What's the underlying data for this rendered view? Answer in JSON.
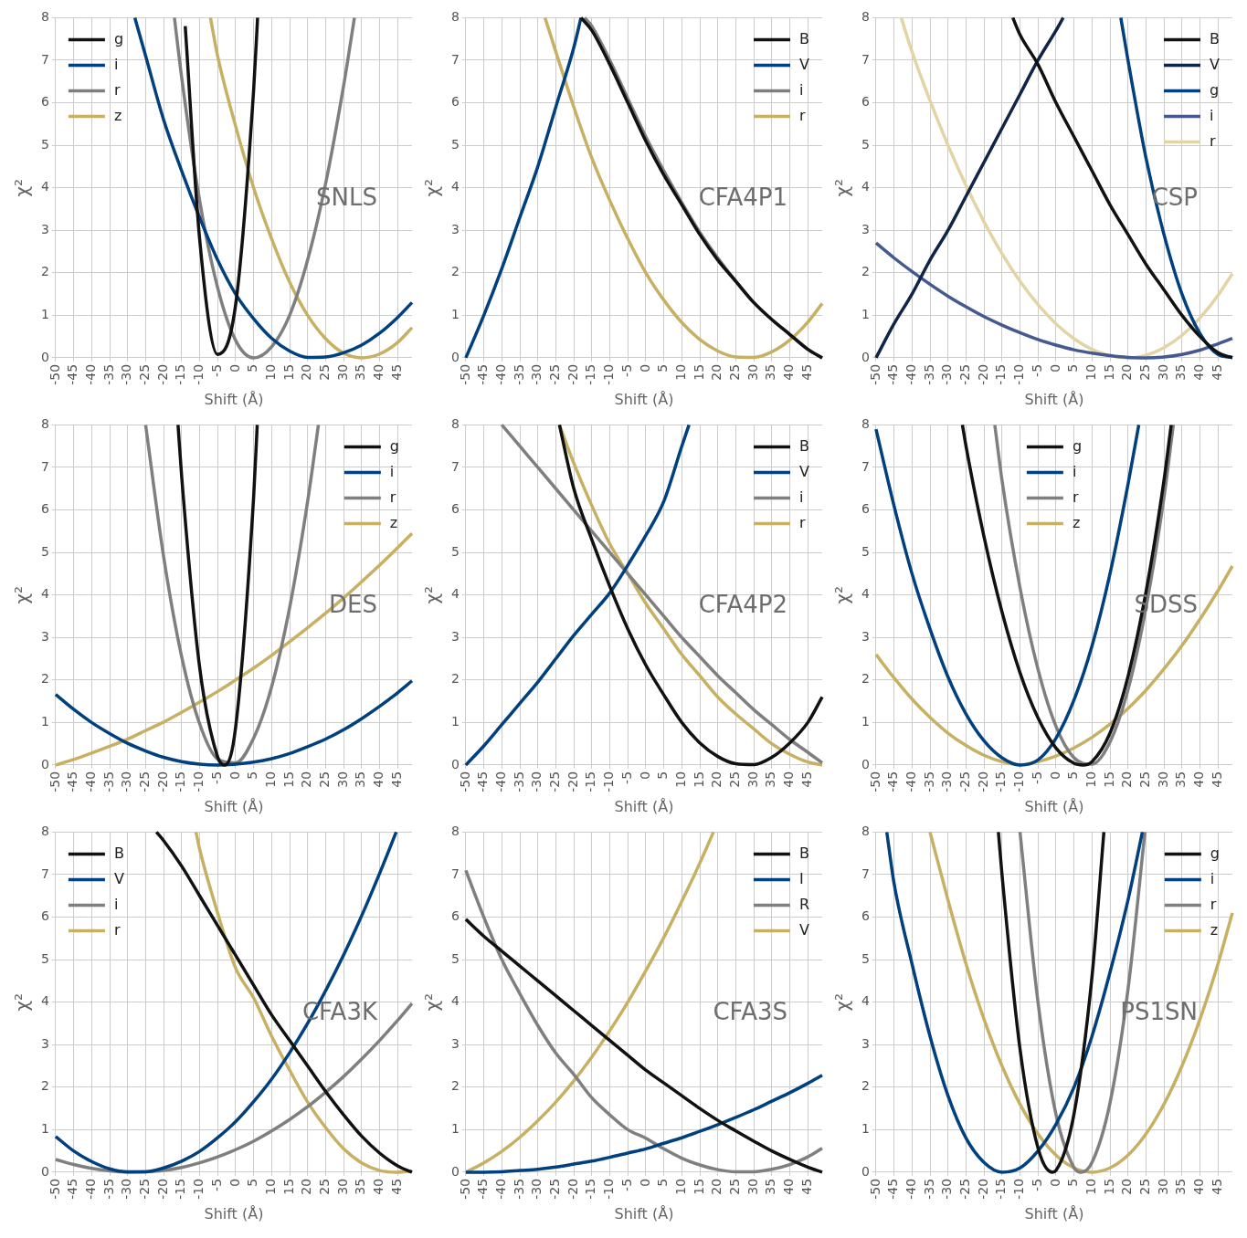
{
  "chart_data": [
    {
      "type": "line",
      "xlabel": "Shift (Å)",
      "ylabel": "χ²",
      "xlim": [
        -50,
        49
      ],
      "xticks": [
        -50,
        -45,
        -40,
        -35,
        -30,
        -25,
        -20,
        -15,
        -10,
        -5,
        0,
        5,
        10,
        15,
        20,
        25,
        30,
        35,
        40,
        45
      ],
      "ylim": [
        0,
        8
      ],
      "yticks": [
        0,
        1,
        2,
        3,
        4,
        5,
        6,
        7,
        8
      ],
      "grid": true,
      "legend": "top left",
      "annotations": [
        "SNLS"
      ],
      "series": [
        {
          "name": "g",
          "color": "#111111",
          "x": [
            -14,
            -10,
            -5,
            0,
            5,
            6.1
          ],
          "values": [
            7.8,
            2.8,
            0.08,
            1.25,
            6.3,
            8
          ]
        },
        {
          "name": "i",
          "color": "#00407f",
          "x": [
            -28,
            -25,
            -20,
            -15,
            -10,
            -5,
            0,
            5,
            10,
            15,
            20,
            25,
            30,
            35,
            40,
            45,
            49
          ],
          "values": [
            8,
            7.1,
            5.6,
            4.4,
            3.3,
            2.3,
            1.5,
            0.92,
            0.46,
            0.16,
            0.01,
            0.02,
            0.12,
            0.3,
            0.58,
            0.95,
            1.3
          ]
        },
        {
          "name": "r",
          "color": "#7f7f7f",
          "x": [
            -17,
            -15,
            -10,
            -5,
            0,
            5,
            10,
            15,
            20,
            25,
            30,
            33
          ],
          "values": [
            8,
            6.6,
            3.7,
            1.65,
            0.41,
            0,
            0.26,
            1.0,
            2.3,
            4.1,
            6.4,
            8
          ]
        },
        {
          "name": "z",
          "color": "#c8b063",
          "x": [
            -7,
            -5,
            0,
            5,
            10,
            15,
            20,
            25,
            30,
            35,
            40,
            45,
            49
          ],
          "values": [
            8,
            7.1,
            5.45,
            4.0,
            2.8,
            1.78,
            1.0,
            0.45,
            0.11,
            0,
            0.09,
            0.36,
            0.71
          ]
        }
      ]
    },
    {
      "type": "line",
      "xlabel": "Shift (Å)",
      "ylabel": "χ²",
      "xlim": [
        -50,
        49
      ],
      "xticks": [
        -50,
        -45,
        -40,
        -35,
        -30,
        -25,
        -20,
        -15,
        -10,
        -5,
        0,
        5,
        10,
        15,
        20,
        25,
        30,
        35,
        40,
        45
      ],
      "ylim": [
        0,
        8
      ],
      "yticks": [
        0,
        1,
        2,
        3,
        4,
        5,
        6,
        7,
        8
      ],
      "grid": true,
      "legend": "top right",
      "annotations": [
        "CFA4P1"
      ],
      "series": [
        {
          "name": "B",
          "color": "#111111",
          "x": [
            -18,
            -15,
            -10,
            -5,
            0,
            5,
            10,
            15,
            20,
            25,
            30,
            35,
            40,
            45,
            49
          ],
          "values": [
            8,
            7.7,
            6.9,
            6.0,
            5.1,
            4.3,
            3.6,
            2.9,
            2.3,
            1.8,
            1.3,
            0.9,
            0.55,
            0.2,
            0
          ]
        },
        {
          "name": "V",
          "color": "#00407f",
          "x": [
            -50,
            -45,
            -40,
            -35,
            -30,
            -25,
            -20,
            -18
          ],
          "values": [
            0,
            1.0,
            2.1,
            3.3,
            4.5,
            5.9,
            7.3,
            8
          ]
        },
        {
          "name": "i",
          "color": "#7f7f7f",
          "x": [
            -17,
            -15,
            -10,
            -5,
            0,
            5,
            10,
            15,
            20,
            25,
            30,
            35,
            40,
            45,
            49
          ],
          "values": [
            8,
            7.8,
            7.0,
            6.1,
            5.2,
            4.4,
            3.65,
            2.95,
            2.35,
            1.8,
            1.3,
            0.9,
            0.55,
            0.2,
            0
          ]
        },
        {
          "name": "r",
          "color": "#c8b063",
          "x": [
            -28,
            -25,
            -20,
            -15,
            -10,
            -5,
            0,
            5,
            10,
            15,
            20,
            25,
            30,
            35,
            40,
            45,
            49
          ],
          "values": [
            8,
            7.2,
            5.9,
            4.7,
            3.7,
            2.8,
            2.0,
            1.36,
            0.83,
            0.43,
            0.16,
            0.02,
            0.01,
            0.14,
            0.42,
            0.84,
            1.28
          ]
        }
      ]
    },
    {
      "type": "line",
      "xlabel": "Shift (Å)",
      "ylabel": "χ²",
      "xlim": [
        -50,
        49
      ],
      "xticks": [
        -50,
        -45,
        -40,
        -35,
        -30,
        -25,
        -20,
        -15,
        -10,
        -5,
        0,
        5,
        10,
        15,
        20,
        25,
        30,
        35,
        40,
        45
      ],
      "ylim": [
        0,
        8
      ],
      "yticks": [
        0,
        1,
        2,
        3,
        4,
        5,
        6,
        7,
        8
      ],
      "grid": true,
      "legend": "top right",
      "annotations": [
        "CSP"
      ],
      "series": [
        {
          "name": "B",
          "color": "#111111",
          "x": [
            -12,
            -10,
            -5,
            0,
            5,
            10,
            15,
            20,
            25,
            30,
            35,
            40,
            45,
            49
          ],
          "values": [
            8,
            7.6,
            6.9,
            6.0,
            5.2,
            4.4,
            3.6,
            2.9,
            2.2,
            1.6,
            1.0,
            0.5,
            0.12,
            0
          ]
        },
        {
          "name": "V",
          "color": "#0f2446",
          "x": [
            -50,
            -45,
            -40,
            -35,
            -30,
            -25,
            -20,
            -15,
            -10,
            -5,
            0,
            2
          ],
          "values": [
            0,
            0.8,
            1.5,
            2.3,
            3.0,
            3.8,
            4.6,
            5.4,
            6.2,
            7.0,
            7.7,
            8
          ]
        },
        {
          "name": "g",
          "color": "#00407f",
          "x": [
            18,
            20,
            25,
            30,
            35,
            40,
            45,
            49
          ],
          "values": [
            8,
            7.0,
            4.7,
            2.9,
            1.5,
            0.57,
            0.08,
            0.01
          ]
        },
        {
          "name": "i",
          "color": "#44598f",
          "x": [
            -50,
            -45,
            -40,
            -35,
            -30,
            -25,
            -20,
            -15,
            -10,
            -5,
            0,
            5,
            10,
            15,
            20,
            25,
            30,
            35,
            40,
            45,
            49
          ],
          "values": [
            2.7,
            2.35,
            2.03,
            1.73,
            1.45,
            1.2,
            0.97,
            0.77,
            0.59,
            0.43,
            0.3,
            0.19,
            0.11,
            0.05,
            0.01,
            0,
            0.02,
            0.08,
            0.18,
            0.33,
            0.46
          ]
        },
        {
          "name": "r",
          "color": "#e3d4a4",
          "x": [
            -43,
            -40,
            -35,
            -30,
            -25,
            -20,
            -15,
            -10,
            -5,
            0,
            5,
            10,
            15,
            20,
            25,
            30,
            35,
            40,
            45,
            49
          ],
          "values": [
            8,
            7.2,
            6.05,
            5.0,
            4.05,
            3.2,
            2.45,
            1.8,
            1.25,
            0.8,
            0.45,
            0.2,
            0.05,
            0,
            0.06,
            0.24,
            0.53,
            0.94,
            1.47,
            1.98
          ]
        }
      ]
    },
    {
      "type": "line",
      "xlabel": "Shift (Å)",
      "ylabel": "χ²",
      "xlim": [
        -50,
        49
      ],
      "xticks": [
        -50,
        -45,
        -40,
        -35,
        -30,
        -25,
        -20,
        -15,
        -10,
        -5,
        0,
        5,
        10,
        15,
        20,
        25,
        30,
        35,
        40,
        45
      ],
      "ylim": [
        0,
        8
      ],
      "yticks": [
        0,
        1,
        2,
        3,
        4,
        5,
        6,
        7,
        8
      ],
      "grid": true,
      "legend": "top right",
      "annotations": [
        "DES"
      ],
      "series": [
        {
          "name": "g",
          "color": "#111111",
          "x": [
            -16,
            -15,
            -10,
            -5,
            -3,
            0,
            5,
            6
          ],
          "values": [
            8,
            6.8,
            2.3,
            0.19,
            0,
            0.89,
            6.3,
            8
          ]
        },
        {
          "name": "i",
          "color": "#00407f",
          "x": [
            -50,
            -45,
            -40,
            -35,
            -30,
            -25,
            -20,
            -15,
            -10,
            -5,
            0,
            5,
            10,
            15,
            20,
            25,
            30,
            35,
            40,
            45,
            49
          ],
          "values": [
            1.66,
            1.31,
            1.0,
            0.74,
            0.51,
            0.33,
            0.18,
            0.08,
            0.02,
            0,
            0.02,
            0.07,
            0.15,
            0.27,
            0.43,
            0.61,
            0.83,
            1.09,
            1.38,
            1.7,
            1.98
          ]
        },
        {
          "name": "r",
          "color": "#7f7f7f",
          "x": [
            -25,
            -20,
            -15,
            -10,
            -5,
            0,
            5,
            10,
            15,
            20,
            23
          ],
          "values": [
            8,
            4.9,
            2.55,
            0.97,
            0.14,
            0.05,
            0.63,
            1.84,
            3.7,
            6.2,
            8
          ]
        },
        {
          "name": "z",
          "color": "#c8b063",
          "x": [
            -50,
            -45,
            -40,
            -35,
            -30,
            -25,
            -20,
            -15,
            -10,
            -5,
            0,
            5,
            10,
            15,
            20,
            25,
            30,
            35,
            40,
            45,
            49
          ],
          "values": [
            0,
            0.13,
            0.28,
            0.44,
            0.61,
            0.81,
            1.01,
            1.24,
            1.48,
            1.73,
            2.0,
            2.28,
            2.58,
            2.9,
            3.23,
            3.57,
            3.93,
            4.31,
            4.7,
            5.11,
            5.45
          ]
        }
      ]
    },
    {
      "type": "line",
      "xlabel": "Shift (Å)",
      "ylabel": "χ²",
      "xlim": [
        -50,
        49
      ],
      "xticks": [
        -50,
        -45,
        -40,
        -35,
        -30,
        -25,
        -20,
        -15,
        -10,
        -5,
        0,
        5,
        10,
        15,
        20,
        25,
        30,
        35,
        40,
        45
      ],
      "ylim": [
        0,
        8
      ],
      "yticks": [
        0,
        1,
        2,
        3,
        4,
        5,
        6,
        7,
        8
      ],
      "grid": true,
      "legend": "top right",
      "annotations": [
        "CFA4P2"
      ],
      "series": [
        {
          "name": "B",
          "color": "#111111",
          "x": [
            -24,
            -20,
            -15,
            -10,
            -5,
            0,
            5,
            10,
            15,
            20,
            25,
            30,
            35,
            40,
            45,
            49
          ],
          "values": [
            8,
            6.5,
            5.3,
            4.2,
            3.2,
            2.35,
            1.65,
            1.0,
            0.52,
            0.2,
            0.03,
            0.01,
            0.18,
            0.52,
            1.0,
            1.6
          ]
        },
        {
          "name": "V",
          "color": "#00407f",
          "x": [
            -50,
            -45,
            -40,
            -35,
            -30,
            -25,
            -20,
            -15,
            -10,
            -5,
            0,
            5,
            10,
            12
          ],
          "values": [
            0,
            0.45,
            0.95,
            1.45,
            1.95,
            2.5,
            3.05,
            3.55,
            4.05,
            4.7,
            5.4,
            6.2,
            7.5,
            8
          ]
        },
        {
          "name": "i",
          "color": "#7f7f7f",
          "x": [
            -40,
            -35,
            -30,
            -25,
            -20,
            -15,
            -10,
            -5,
            0,
            5,
            10,
            15,
            20,
            25,
            30,
            35,
            40,
            45,
            49
          ],
          "values": [
            8,
            7.5,
            7.0,
            6.5,
            6.0,
            5.5,
            5.0,
            4.5,
            4.0,
            3.5,
            3.0,
            2.55,
            2.1,
            1.7,
            1.3,
            0.95,
            0.6,
            0.3,
            0.05
          ]
        },
        {
          "name": "r",
          "color": "#c8b063",
          "x": [
            -24,
            -20,
            -15,
            -10,
            -5,
            0,
            5,
            10,
            15,
            20,
            25,
            30,
            35,
            40,
            45,
            49
          ],
          "values": [
            8,
            7.1,
            6.1,
            5.2,
            4.5,
            3.8,
            3.2,
            2.6,
            2.1,
            1.6,
            1.2,
            0.85,
            0.5,
            0.25,
            0.07,
            0
          ]
        }
      ]
    },
    {
      "type": "line",
      "xlabel": "Shift (Å)",
      "ylabel": "χ²",
      "xlim": [
        -50,
        49
      ],
      "xticks": [
        -50,
        -45,
        -40,
        -35,
        -30,
        -25,
        -20,
        -15,
        -10,
        -5,
        0,
        5,
        10,
        15,
        20,
        25,
        30,
        35,
        40,
        45
      ],
      "ylim": [
        0,
        8
      ],
      "yticks": [
        0,
        1,
        2,
        3,
        4,
        5,
        6,
        7,
        8
      ],
      "grid": true,
      "legend": "top",
      "annotations": [
        "SDSS"
      ],
      "series": [
        {
          "name": "g",
          "color": "#111111",
          "x": [
            -26,
            -25,
            -20,
            -15,
            -10,
            -5,
            0,
            5,
            7.5,
            10,
            15,
            20,
            25,
            30,
            32
          ],
          "values": [
            8,
            7.5,
            5.37,
            3.6,
            2.17,
            1.11,
            0.4,
            0.04,
            0,
            0.08,
            0.75,
            2.08,
            4.07,
            6.7,
            8
          ]
        },
        {
          "name": "i",
          "color": "#00407f",
          "x": [
            -50,
            -45,
            -40,
            -35,
            -30,
            -25,
            -20,
            -15,
            -10,
            -5,
            0,
            5,
            10,
            15,
            20,
            23
          ],
          "values": [
            7.9,
            6.1,
            4.5,
            3.2,
            2.07,
            1.2,
            0.57,
            0.17,
            0,
            0.12,
            0.63,
            1.53,
            2.8,
            4.5,
            6.6,
            8
          ]
        },
        {
          "name": "r",
          "color": "#7f7f7f",
          "x": [
            -17,
            -15,
            -10,
            -5,
            0,
            5,
            10,
            15,
            20,
            25,
            30,
            32.6
          ],
          "values": [
            8,
            6.7,
            4.17,
            2.25,
            0.91,
            0.17,
            0.02,
            0.54,
            1.77,
            3.7,
            6.3,
            8
          ]
        },
        {
          "name": "z",
          "color": "#c8b063",
          "x": [
            -50,
            -45,
            -40,
            -35,
            -30,
            -25,
            -20,
            -15,
            -10,
            -5,
            0,
            5,
            10,
            15,
            20,
            25,
            30,
            35,
            40,
            45,
            49
          ],
          "values": [
            2.6,
            2.05,
            1.55,
            1.12,
            0.75,
            0.46,
            0.23,
            0.08,
            0.01,
            0.08,
            0.21,
            0.4,
            0.65,
            0.96,
            1.33,
            1.76,
            2.26,
            2.81,
            3.43,
            4.1,
            4.68
          ]
        }
      ]
    },
    {
      "type": "line",
      "xlabel": "Shift (Å)",
      "ylabel": "χ²",
      "xlim": [
        -50,
        49
      ],
      "xticks": [
        -50,
        -45,
        -40,
        -35,
        -30,
        -25,
        -20,
        -15,
        -10,
        -5,
        0,
        5,
        10,
        15,
        20,
        25,
        30,
        35,
        40,
        45
      ],
      "ylim": [
        0,
        8
      ],
      "yticks": [
        0,
        1,
        2,
        3,
        4,
        5,
        6,
        7,
        8
      ],
      "grid": true,
      "legend": "top left",
      "annotations": [
        "CFA3K"
      ],
      "series": [
        {
          "name": "B",
          "color": "#111111",
          "x": [
            -22,
            -20,
            -15,
            -10,
            -5,
            0,
            5,
            10,
            15,
            20,
            25,
            30,
            35,
            40,
            45,
            49
          ],
          "values": [
            8,
            7.8,
            7.2,
            6.5,
            5.8,
            5.1,
            4.4,
            3.7,
            3.1,
            2.5,
            1.9,
            1.35,
            0.85,
            0.45,
            0.15,
            0
          ]
        },
        {
          "name": "V",
          "color": "#00407f",
          "x": [
            -50,
            -45,
            -40,
            -35,
            -30,
            -25,
            -20,
            -15,
            -10,
            -5,
            0,
            5,
            10,
            15,
            20,
            25,
            30,
            35,
            40,
            44.6
          ],
          "values": [
            0.84,
            0.5,
            0.25,
            0.08,
            0.01,
            0.01,
            0.1,
            0.26,
            0.49,
            0.81,
            1.19,
            1.66,
            2.19,
            2.81,
            3.5,
            4.27,
            5.11,
            6.03,
            7.03,
            8
          ]
        },
        {
          "name": "i",
          "color": "#7f7f7f",
          "x": [
            -50,
            -45,
            -40,
            -35,
            -30,
            -25,
            -20,
            -15,
            -10,
            -5,
            0,
            5,
            10,
            15,
            20,
            25,
            30,
            35,
            40,
            45,
            49
          ],
          "values": [
            0.3,
            0.18,
            0.09,
            0.03,
            0,
            0.01,
            0.04,
            0.11,
            0.22,
            0.36,
            0.53,
            0.73,
            0.97,
            1.24,
            1.54,
            1.88,
            2.25,
            2.66,
            3.1,
            3.57,
            3.97
          ]
        },
        {
          "name": "r",
          "color": "#c8b063",
          "x": [
            -11,
            -10,
            -5,
            0,
            5,
            10,
            15,
            20,
            25,
            30,
            35,
            40,
            45,
            49
          ],
          "values": [
            8,
            7.6,
            6.1,
            4.8,
            4.1,
            3.2,
            2.4,
            1.65,
            1.05,
            0.55,
            0.22,
            0.04,
            0,
            0.03
          ]
        }
      ]
    },
    {
      "type": "line",
      "xlabel": "Shift (Å)",
      "ylabel": "χ²",
      "xlim": [
        -50,
        49
      ],
      "xticks": [
        -50,
        -45,
        -40,
        -35,
        -30,
        -25,
        -20,
        -15,
        -10,
        -5,
        0,
        5,
        10,
        15,
        20,
        25,
        30,
        35,
        40,
        45
      ],
      "ylim": [
        0,
        8
      ],
      "yticks": [
        0,
        1,
        2,
        3,
        4,
        5,
        6,
        7,
        8
      ],
      "grid": true,
      "legend": "top right",
      "annotations": [
        "CFA3S"
      ],
      "series": [
        {
          "name": "B",
          "color": "#111111",
          "x": [
            -50,
            -45,
            -40,
            -35,
            -30,
            -25,
            -20,
            -15,
            -10,
            -5,
            0,
            5,
            10,
            15,
            20,
            25,
            30,
            35,
            40,
            45,
            49
          ],
          "values": [
            5.95,
            5.55,
            5.2,
            4.85,
            4.5,
            4.15,
            3.8,
            3.45,
            3.1,
            2.75,
            2.4,
            2.1,
            1.8,
            1.5,
            1.22,
            0.97,
            0.73,
            0.5,
            0.3,
            0.12,
            0
          ]
        },
        {
          "name": "I",
          "color": "#00407f",
          "x": [
            -50,
            -45,
            -40,
            -35,
            -30,
            -25,
            -20,
            -15,
            -10,
            -5,
            0,
            5,
            10,
            15,
            20,
            25,
            30,
            35,
            40,
            45,
            49
          ],
          "values": [
            0,
            0,
            0.01,
            0.04,
            0.07,
            0.12,
            0.19,
            0.26,
            0.35,
            0.45,
            0.55,
            0.68,
            0.81,
            0.96,
            1.12,
            1.29,
            1.47,
            1.67,
            1.87,
            2.09,
            2.28
          ]
        },
        {
          "name": "R",
          "color": "#7f7f7f",
          "x": [
            -50,
            -45,
            -40,
            -35,
            -30,
            -25,
            -20,
            -15,
            -10,
            -5,
            0,
            5,
            10,
            15,
            20,
            25,
            30,
            35,
            40,
            45,
            49
          ],
          "values": [
            7.1,
            6.0,
            5.0,
            4.2,
            3.45,
            2.8,
            2.3,
            1.75,
            1.35,
            1.0,
            0.8,
            0.55,
            0.33,
            0.17,
            0.06,
            0.01,
            0.01,
            0.07,
            0.18,
            0.36,
            0.56
          ]
        },
        {
          "name": "V",
          "color": "#c8b063",
          "x": [
            -50,
            -45,
            -40,
            -35,
            -30,
            -25,
            -20,
            -15,
            -10,
            -5,
            0,
            5,
            10,
            15,
            18.8
          ],
          "values": [
            0,
            0.22,
            0.49,
            0.82,
            1.21,
            1.65,
            2.15,
            2.71,
            3.33,
            4.0,
            4.74,
            5.52,
            6.37,
            7.27,
            8
          ]
        }
      ]
    },
    {
      "type": "line",
      "xlabel": "Shift (Å)",
      "ylabel": "χ²",
      "xlim": [
        -50,
        49
      ],
      "xticks": [
        -50,
        -45,
        -40,
        -35,
        -30,
        -25,
        -20,
        -15,
        -10,
        -5,
        0,
        5,
        10,
        15,
        20,
        25,
        30,
        35,
        40,
        45
      ],
      "ylim": [
        0,
        8
      ],
      "yticks": [
        0,
        1,
        2,
        3,
        4,
        5,
        6,
        7,
        8
      ],
      "grid": true,
      "legend": "top right",
      "annotations": [
        "PS1SN"
      ],
      "series": [
        {
          "name": "g",
          "color": "#111111",
          "x": [
            -16,
            -15,
            -10,
            -5,
            -1,
            0,
            5,
            10,
            13.3
          ],
          "values": [
            8,
            7.0,
            2.9,
            0.57,
            0,
            0.04,
            1.37,
            4.6,
            8
          ]
        },
        {
          "name": "i",
          "color": "#00407f",
          "x": [
            -47,
            -45,
            -40,
            -35,
            -30,
            -25,
            -20,
            -15,
            -10,
            -5,
            0,
            5,
            10,
            15,
            20,
            24
          ],
          "values": [
            8,
            6.8,
            4.9,
            3.2,
            1.8,
            0.8,
            0.23,
            0,
            0.1,
            0.5,
            1.13,
            2.0,
            3.2,
            4.7,
            6.4,
            8
          ]
        },
        {
          "name": "r",
          "color": "#7f7f7f",
          "x": [
            -10,
            -5,
            0,
            5,
            7,
            10,
            15,
            20,
            24.7
          ],
          "values": [
            8,
            4.0,
            1.36,
            0.11,
            0,
            0.23,
            1.63,
            4.3,
            8
          ]
        },
        {
          "name": "z",
          "color": "#c8b063",
          "x": [
            -35,
            -30,
            -25,
            -20,
            -15,
            -10,
            -5,
            0,
            5,
            10,
            15,
            20,
            25,
            30,
            35,
            40,
            45,
            49
          ],
          "values": [
            8,
            6.4,
            4.9,
            3.6,
            2.5,
            1.6,
            0.9,
            0.4,
            0.1,
            0,
            0.1,
            0.4,
            0.9,
            1.6,
            2.5,
            3.6,
            4.9,
            6.1
          ]
        }
      ]
    }
  ]
}
